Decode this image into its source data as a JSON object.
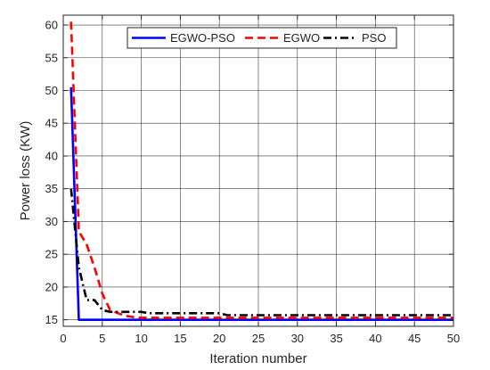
{
  "chart_data": {
    "type": "line",
    "title": "",
    "xlabel": "Iteration number",
    "ylabel": "Power loss (KW)",
    "xlim": [
      0,
      50
    ],
    "ylim": [
      14,
      61.5
    ],
    "xticks": [
      0,
      5,
      10,
      15,
      20,
      25,
      30,
      35,
      40,
      45,
      50
    ],
    "yticks": [
      15,
      20,
      25,
      30,
      35,
      40,
      45,
      50,
      55,
      60
    ],
    "grid": true,
    "legend": {
      "placement": "top-center",
      "orientation": "horizontal"
    },
    "series": [
      {
        "name": "EGWO-PSO",
        "color": "#0000ff",
        "style": "solid",
        "x": [
          1,
          2,
          3,
          4,
          5,
          10,
          20,
          30,
          40,
          50
        ],
        "y": [
          50.5,
          15.0,
          15.0,
          15.0,
          15.0,
          15.0,
          15.0,
          15.0,
          15.0,
          15.0
        ]
      },
      {
        "name": "EGWO",
        "color": "#ff0000",
        "style": "dashed",
        "x": [
          1,
          2,
          3,
          4,
          5,
          6,
          7,
          8,
          9,
          10,
          15,
          20,
          25,
          30,
          35,
          40,
          45,
          50
        ],
        "y": [
          60.5,
          28.5,
          26.5,
          23.0,
          19.0,
          16.5,
          16.0,
          15.6,
          15.4,
          15.3,
          15.3,
          15.3,
          15.3,
          15.3,
          15.3,
          15.3,
          15.3,
          15.3
        ]
      },
      {
        "name": "PSO",
        "color": "#000000",
        "style": "dashdot",
        "x": [
          1,
          2,
          3,
          4,
          5,
          6,
          10,
          11,
          20,
          21,
          50
        ],
        "y": [
          35.0,
          23.0,
          18.0,
          18.0,
          16.5,
          16.2,
          16.2,
          16.0,
          16.0,
          15.7,
          15.7
        ]
      }
    ]
  }
}
